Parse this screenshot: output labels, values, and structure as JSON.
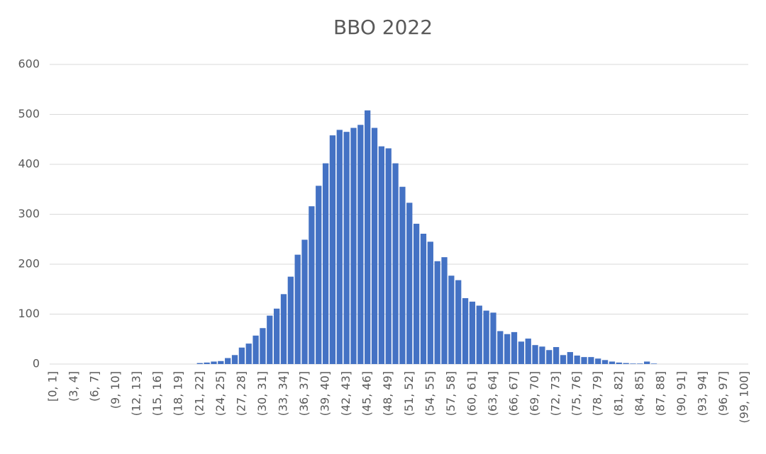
{
  "chart_data": {
    "type": "bar",
    "title": "BBO 2022",
    "categories": [
      "[0, 1]",
      null,
      null,
      "(3, 4]",
      null,
      null,
      "(6, 7]",
      null,
      null,
      "(9, 10]",
      null,
      null,
      "(12, 13]",
      null,
      null,
      "(15, 16]",
      null,
      null,
      "(18, 19]",
      null,
      null,
      "(21, 22]",
      null,
      null,
      "(24, 25]",
      null,
      null,
      "(27, 28]",
      null,
      null,
      "(30, 31]",
      null,
      null,
      "(33, 34]",
      null,
      null,
      "(36, 37]",
      null,
      null,
      "(39, 40]",
      null,
      null,
      "(42, 43]",
      null,
      null,
      "(45, 46]",
      null,
      null,
      "(48, 49]",
      null,
      null,
      "(51, 52]",
      null,
      null,
      "(54, 55]",
      null,
      null,
      "(57, 58]",
      null,
      null,
      "(60, 61]",
      null,
      null,
      "(63, 64]",
      null,
      null,
      "(66, 67]",
      null,
      null,
      "(69, 70]",
      null,
      null,
      "(72, 73]",
      null,
      null,
      "(75, 76]",
      null,
      null,
      "(78, 79]",
      null,
      null,
      "(81, 82]",
      null,
      null,
      "(84, 85]",
      null,
      null,
      "(87, 88]",
      null,
      null,
      "(90, 91]",
      null,
      null,
      "(93, 94]",
      null,
      null,
      "(96, 97]",
      null,
      null,
      "(99, 100]"
    ],
    "values": [
      0,
      0,
      0,
      0,
      0,
      0,
      0,
      0,
      0,
      0,
      0,
      0,
      0,
      0,
      0,
      0,
      0,
      0,
      0,
      0,
      0,
      2,
      3,
      5,
      6,
      12,
      18,
      33,
      41,
      57,
      72,
      97,
      111,
      140,
      175,
      219,
      249,
      316,
      357,
      402,
      458,
      469,
      465,
      473,
      479,
      508,
      473,
      436,
      432,
      402,
      355,
      323,
      281,
      261,
      245,
      206,
      214,
      177,
      168,
      132,
      125,
      117,
      107,
      103,
      66,
      60,
      64,
      45,
      51,
      38,
      35,
      28,
      34,
      18,
      24,
      17,
      14,
      14,
      11,
      8,
      5,
      3,
      2,
      1,
      1,
      5,
      1,
      0,
      0,
      0,
      0,
      0,
      0,
      0,
      0,
      0,
      0,
      0,
      0,
      0
    ],
    "color": "#4472c4",
    "ylim": [
      0,
      600
    ],
    "yticks": [
      0,
      100,
      200,
      300,
      400,
      500,
      600
    ],
    "grid": true
  }
}
